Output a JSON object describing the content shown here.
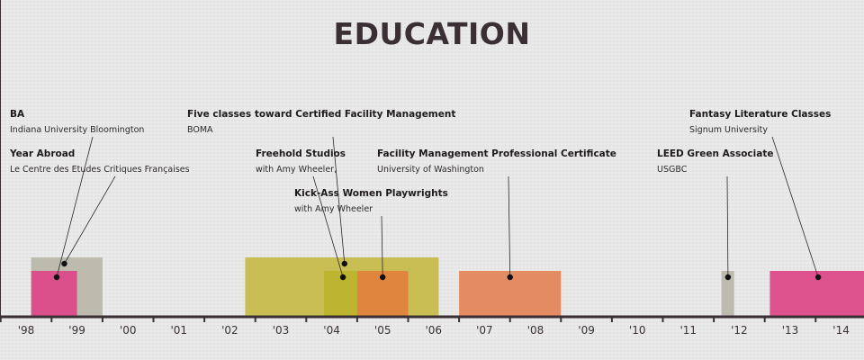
{
  "page": {
    "title": "EDUCATION"
  },
  "colors": {
    "axis": "#3a3035",
    "leader": "#2a2a2a",
    "gray": "#b9b8ab",
    "pink": "#dc4a88",
    "olive": "#c5ba45",
    "olive_dark": "#bdb32e",
    "orange": "#e2823c",
    "salmon": "#e3875c"
  },
  "chart_data": {
    "type": "timeline",
    "title": "EDUCATION",
    "x_range": [
      1998,
      2014
    ],
    "ticks": [
      "'98",
      "'99",
      "'00",
      "'01",
      "'02",
      "'03",
      "'04",
      "'05",
      "'06",
      "'07",
      "'08",
      "'09",
      "'10",
      "'11",
      "'12",
      "'13",
      "'14"
    ],
    "items": [
      {
        "id": "year-abroad",
        "name": "Year Abroad",
        "detail": "Le Centre des Etudes Critiques Françaises",
        "start": 1998.1,
        "end": 1999.5,
        "row": "tall",
        "color": "gray",
        "point": 1998.75
      },
      {
        "id": "ba",
        "name": "BA",
        "detail": "Indiana University Bloomington",
        "start": 1998.1,
        "end": 1999.0,
        "row": "short",
        "color": "pink",
        "point": 1998.6
      },
      {
        "id": "five-classes",
        "name": "Five classes toward Certified Facility Management",
        "detail": "BOMA",
        "start": 2002.3,
        "end": 2006.1,
        "row": "tall",
        "color": "olive",
        "point": 2004.25
      },
      {
        "id": "freehold",
        "name": "Freehold Studios",
        "detail": "with Amy Wheeler,",
        "start": 2003.85,
        "end": 2004.5,
        "row": "short",
        "color": "olive_dark",
        "point": 2004.22
      },
      {
        "id": "kick-ass",
        "name": "Kick-Ass Women Playwrights",
        "detail": "with Amy Wheeler",
        "start": 2004.5,
        "end": 2005.5,
        "row": "short",
        "color": "orange",
        "point": 2005.0
      },
      {
        "id": "facility-mgmt",
        "name": "Facility Management Professional Certificate",
        "detail": "University of Washington",
        "start": 2006.5,
        "end": 2008.5,
        "row": "short",
        "color": "salmon",
        "point": 2007.5
      },
      {
        "id": "leed",
        "name": "LEED Green Associate",
        "detail": "USGBC",
        "start": 2011.65,
        "end": 2011.9,
        "row": "short",
        "color": "gray",
        "point": 2011.78
      },
      {
        "id": "fantasy",
        "name": "Fantasy Literature Classes",
        "detail": "Signum University",
        "start": 2012.6,
        "end": 2014.5,
        "row": "short",
        "color": "pink",
        "point": 2013.55
      }
    ]
  }
}
